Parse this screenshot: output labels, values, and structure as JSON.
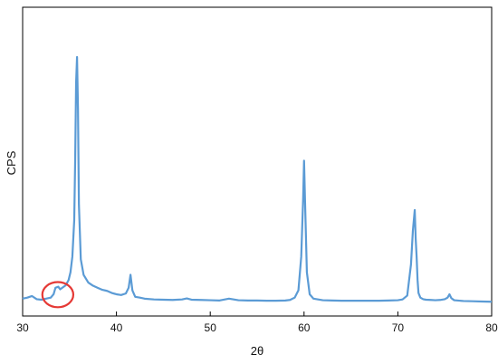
{
  "chart_data": {
    "type": "line",
    "xlabel": "2θ",
    "ylabel": "CPS",
    "xlim": [
      30,
      80
    ],
    "ylim": [
      0,
      100
    ],
    "grid": false,
    "legend": "none",
    "x_ticks": [
      30,
      40,
      50,
      60,
      70,
      80
    ],
    "y_ticks_shown": false,
    "series": [
      {
        "values_note_free": true,
        "color": "#5b9bd5",
        "x": [
          30.0,
          30.5,
          31.0,
          31.5,
          32.0,
          32.5,
          33.0,
          33.3,
          33.5,
          33.8,
          34.0,
          34.3,
          34.6,
          34.9,
          35.1,
          35.3,
          35.5,
          35.6,
          35.7,
          35.8,
          35.9,
          36.0,
          36.2,
          36.5,
          37.0,
          37.5,
          38.0,
          38.5,
          39.0,
          39.5,
          40.0,
          40.5,
          41.0,
          41.3,
          41.5,
          41.7,
          42.0,
          42.5,
          43.0,
          44.0,
          45.0,
          46.0,
          47.0,
          47.5,
          48.0,
          49.0,
          50.0,
          51.0,
          52.0,
          52.5,
          53.0,
          54.0,
          55.0,
          56.0,
          57.0,
          58.0,
          58.5,
          59.0,
          59.4,
          59.7,
          59.9,
          60.0,
          60.1,
          60.3,
          60.6,
          61.0,
          62.0,
          63.0,
          64.0,
          65.0,
          66.0,
          67.0,
          68.0,
          69.0,
          70.0,
          70.5,
          71.0,
          71.4,
          71.6,
          71.8,
          71.9,
          72.0,
          72.1,
          72.2,
          72.4,
          72.7,
          73.0,
          73.5,
          74.0,
          74.5,
          75.0,
          75.3,
          75.5,
          75.7,
          76.0,
          77.0,
          78.0,
          79.0,
          80.0
        ],
        "y": [
          1.8,
          2.2,
          2.8,
          1.6,
          1.4,
          1.8,
          2.2,
          3.5,
          6.0,
          6.4,
          5.4,
          6.2,
          7.0,
          9.0,
          12.0,
          18.0,
          32.0,
          55.0,
          85.0,
          95.0,
          75.0,
          38.0,
          17.0,
          11.0,
          8.0,
          6.8,
          6.0,
          5.2,
          4.8,
          4.0,
          3.5,
          3.2,
          3.8,
          6.0,
          11.0,
          5.0,
          2.5,
          2.2,
          1.8,
          1.5,
          1.4,
          1.3,
          1.5,
          1.9,
          1.4,
          1.3,
          1.2,
          1.1,
          1.8,
          1.5,
          1.2,
          1.1,
          1.1,
          1.0,
          1.0,
          1.1,
          1.3,
          2.2,
          5.0,
          18.0,
          40.0,
          55.0,
          40.0,
          12.0,
          3.5,
          1.8,
          1.2,
          1.1,
          1.0,
          1.0,
          1.0,
          1.0,
          1.0,
          1.1,
          1.2,
          1.5,
          3.0,
          15.0,
          28.0,
          36.0,
          25.0,
          18.0,
          9.0,
          4.0,
          2.2,
          1.6,
          1.4,
          1.3,
          1.2,
          1.3,
          1.6,
          2.2,
          3.5,
          2.0,
          1.2,
          0.9,
          0.8,
          0.7,
          0.6
        ]
      }
    ],
    "annotation": {
      "shape": "ellipse",
      "color": "#e53935",
      "x_range": [
        32.1,
        35.4
      ],
      "y_range": [
        -1.5,
        8.2
      ]
    }
  }
}
